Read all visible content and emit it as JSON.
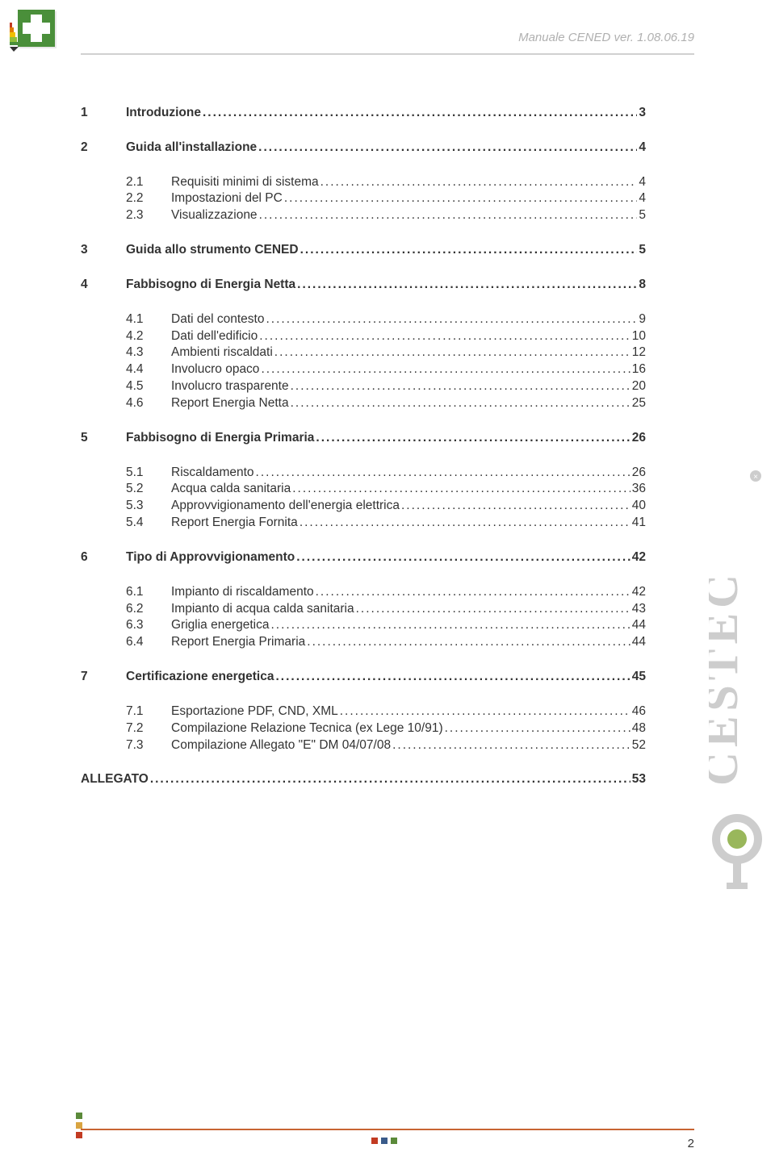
{
  "header": {
    "title": "Manuale CENED ver. 1.08.06.19"
  },
  "toc": [
    {
      "level": 1,
      "num": "1",
      "label": "Introduzione",
      "page": "3"
    },
    {
      "level": 1,
      "num": "2",
      "label": "Guida all'installazione",
      "page": "4"
    },
    {
      "level": 2,
      "num": "2.1",
      "label": "Requisiti minimi di sistema",
      "page": "4"
    },
    {
      "level": 2,
      "num": "2.2",
      "label": "Impostazioni del PC",
      "page": "4"
    },
    {
      "level": 2,
      "num": "2.3",
      "label": "Visualizzazione",
      "page": "5"
    },
    {
      "level": 1,
      "num": "3",
      "label": "Guida allo strumento CENED",
      "page": "5"
    },
    {
      "level": 1,
      "num": "4",
      "label": "Fabbisogno di Energia Netta",
      "page": "8"
    },
    {
      "level": 2,
      "num": "4.1",
      "label": "Dati del contesto",
      "page": "9"
    },
    {
      "level": 2,
      "num": "4.2",
      "label": "Dati dell'edificio",
      "page": "10"
    },
    {
      "level": 2,
      "num": "4.3",
      "label": "Ambienti riscaldati",
      "page": "12"
    },
    {
      "level": 2,
      "num": "4.4",
      "label": "Involucro opaco",
      "page": "16"
    },
    {
      "level": 2,
      "num": "4.5",
      "label": "Involucro trasparente",
      "page": "20"
    },
    {
      "level": 2,
      "num": "4.6",
      "label": "Report Energia Netta",
      "page": "25"
    },
    {
      "level": 1,
      "num": "5",
      "label": "Fabbisogno di Energia Primaria",
      "page": "26"
    },
    {
      "level": 2,
      "num": "5.1",
      "label": "Riscaldamento",
      "page": "26"
    },
    {
      "level": 2,
      "num": "5.2",
      "label": "Acqua calda sanitaria",
      "page": "36"
    },
    {
      "level": 2,
      "num": "5.3",
      "label": "Approvvigionamento dell'energia elettrica",
      "page": "40"
    },
    {
      "level": 2,
      "num": "5.4",
      "label": "Report Energia Fornita",
      "page": "41"
    },
    {
      "level": 1,
      "num": "6",
      "label": "Tipo di Approvvigionamento",
      "page": "42"
    },
    {
      "level": 2,
      "num": "6.1",
      "label": "Impianto di riscaldamento",
      "page": "42"
    },
    {
      "level": 2,
      "num": "6.2",
      "label": "Impianto di acqua calda sanitaria",
      "page": "43"
    },
    {
      "level": 2,
      "num": "6.3",
      "label": "Griglia energetica",
      "page": "44"
    },
    {
      "level": 2,
      "num": "6.4",
      "label": "Report Energia Primaria",
      "page": "44"
    },
    {
      "level": 1,
      "num": "7",
      "label": "Certificazione energetica",
      "page": "45"
    },
    {
      "level": 2,
      "num": "7.1",
      "label": "Esportazione PDF, CND, XML",
      "page": "46"
    },
    {
      "level": 2,
      "num": "7.2",
      "label": "Compilazione Relazione Tecnica (ex Lege 10/91)",
      "page": "48"
    },
    {
      "level": 2,
      "num": "7.3",
      "label": "Compilazione Allegato \"E\" DM 04/07/08",
      "page": "52"
    },
    {
      "level": 1,
      "num": "",
      "label": "ALLEGATO",
      "page": "53",
      "noindent": true
    }
  ],
  "footer": {
    "page_number": "2",
    "square_colors_v": [
      "#5b8a3a",
      "#d9a441",
      "#c23b22"
    ],
    "square_colors_h": [
      "#c23b22",
      "#3a5b8a",
      "#5b8a3a"
    ],
    "rule_color": "#c86432"
  },
  "logo": {
    "bg": "#4a8f3a",
    "cross": "#ffffff",
    "shadow": "#d0d0d0",
    "bars": [
      "#c23b22",
      "#e07b00",
      "#f0c000",
      "#8fbf3a",
      "#4a8f3a"
    ]
  },
  "side_logo": {
    "text": "CESTEC",
    "colors": {
      "c1": "#b0b0b0",
      "c2": "#b0b0b0",
      "c3": "#b0b0b0",
      "accent": "#8fb04a",
      "grey": "#c0c0c0"
    }
  }
}
